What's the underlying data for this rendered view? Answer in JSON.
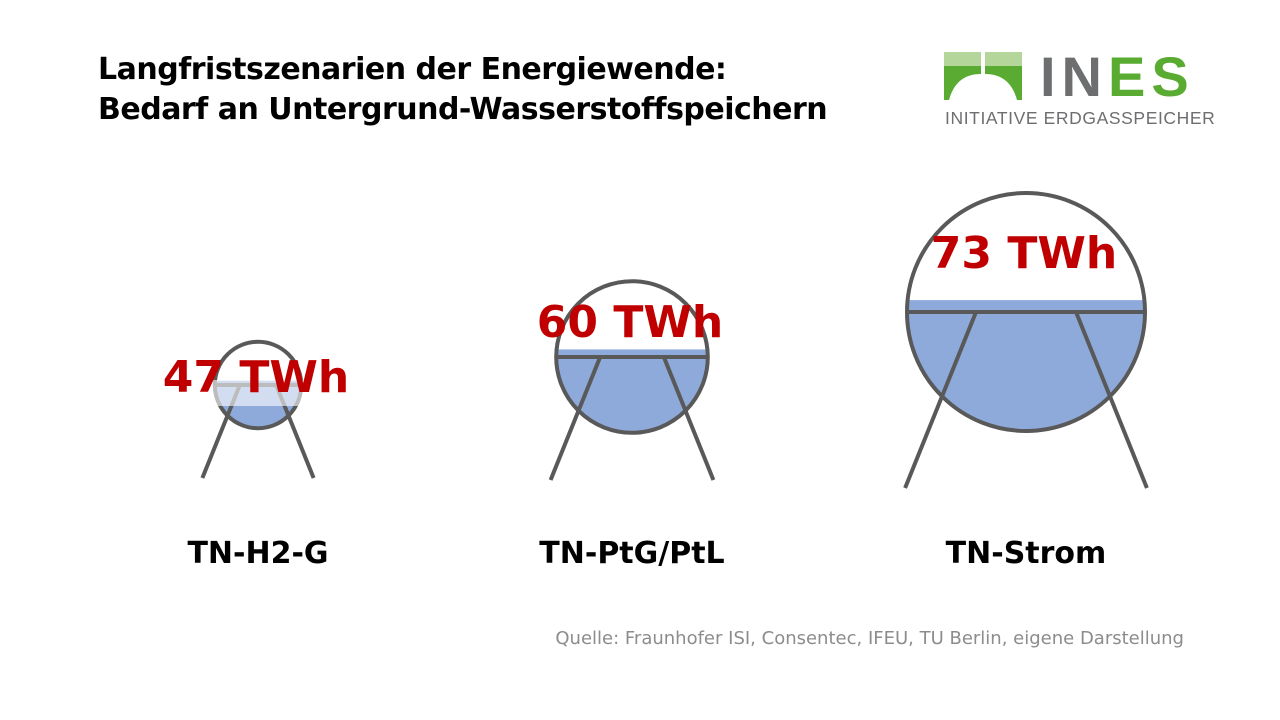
{
  "title": {
    "line1": "Langfristszenarien der Energiewende:",
    "line2": "Bedarf an Untergrund-Wasserstoffspeichern"
  },
  "logo": {
    "word_gray": "IN",
    "word_green": "ES",
    "subtitle": "INITIATIVE ERDGASSPEICHER",
    "green": "#5aab31",
    "gray": "#6d6e70"
  },
  "source": "Quelle: Fraunhofer ISI, Consentec, IFEU, TU Berlin, eigene Darstellung",
  "chart_data": {
    "type": "bubble",
    "unit": "TWh",
    "categories": [
      "TN-H2-G",
      "TN-PtG/PtL",
      "TN-Strom"
    ],
    "values": [
      47,
      60,
      73
    ],
    "value_labels": [
      "47 TWh",
      "60 TWh",
      "73 TWh"
    ],
    "colors": {
      "fill": "#8eaadb",
      "outline": "#595959",
      "value_text": "#c00000"
    }
  }
}
